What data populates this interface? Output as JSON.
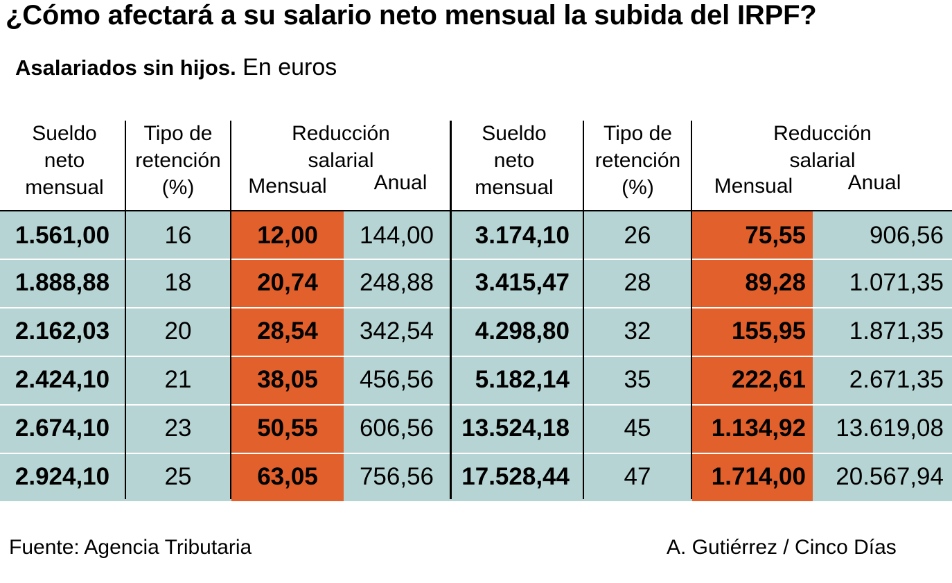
{
  "title": "¿Cómo afectará a su salario neto mensual la subida del IRPF?",
  "subtitle_bold": "Asalariados sin hijos.",
  "subtitle_rest": "En euros",
  "headers": {
    "sueldo": [
      "Sueldo",
      "neto",
      "mensual"
    ],
    "tipo": [
      "Tipo de",
      "retención",
      "(%)"
    ],
    "reduccion": [
      "Reducción",
      "salarial"
    ],
    "mensual": "Mensual",
    "anual": "Anual"
  },
  "colors": {
    "teal": "#b6d4d3",
    "orange": "#e2602b"
  },
  "chart_data": {
    "type": "table",
    "title": "¿Cómo afectará a su salario neto mensual la subida del IRPF?",
    "columns": [
      "Sueldo neto mensual",
      "Tipo de retención (%)",
      "Reducción salarial Mensual",
      "Reducción salarial Anual"
    ],
    "left_rows": [
      [
        "1.561,00",
        "16",
        "12,00",
        "144,00"
      ],
      [
        "1.888,88",
        "18",
        "20,74",
        "248,88"
      ],
      [
        "2.162,03",
        "20",
        "28,54",
        "342,54"
      ],
      [
        "2.424,10",
        "21",
        "38,05",
        "456,56"
      ],
      [
        "2.674,10",
        "23",
        "50,55",
        "606,56"
      ],
      [
        "2.924,10",
        "25",
        "63,05",
        "756,56"
      ]
    ],
    "right_rows": [
      [
        "3.174,10",
        "26",
        "75,55",
        "906,56"
      ],
      [
        "3.415,47",
        "28",
        "89,28",
        "1.071,35"
      ],
      [
        "4.298,80",
        "32",
        "155,95",
        "1.871,35"
      ],
      [
        "5.182,14",
        "35",
        "222,61",
        "2.671,35"
      ],
      [
        "13.524,18",
        "45",
        "1.134,92",
        "13.619,08"
      ],
      [
        "17.528,44",
        "47",
        "1.714,00",
        "20.567,94"
      ]
    ]
  },
  "footer": {
    "source": "Fuente: Agencia Tributaria",
    "credit": "A. Gutiérrez / Cinco Días"
  }
}
